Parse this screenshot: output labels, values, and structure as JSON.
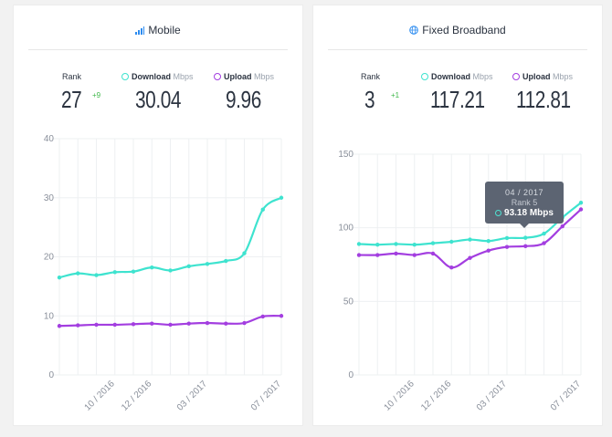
{
  "panels": [
    {
      "title": "Mobile",
      "icon": "signal-bars-icon",
      "rank_label": "Rank",
      "rank": "27",
      "rank_change": "+9",
      "download_label": "Download",
      "download_unit": "Mbps",
      "download": "30.04",
      "upload_label": "Upload",
      "upload_unit": "Mbps",
      "upload": "9.96"
    },
    {
      "title": "Fixed Broadband",
      "icon": "globe-icon",
      "rank_label": "Rank",
      "rank": "3",
      "rank_change": "+1",
      "download_label": "Download",
      "download_unit": "Mbps",
      "download": "117.21",
      "upload_label": "Upload",
      "upload_unit": "Mbps",
      "upload": "112.81"
    }
  ],
  "tooltip": {
    "date": "04 / 2017",
    "rank": "Rank 5",
    "value": "93.18 Mbps"
  },
  "colors": {
    "download": "#3ee3cf",
    "upload": "#a33ee0"
  },
  "chart_data": [
    {
      "type": "line",
      "title": "Mobile",
      "x": [
        "07/2016",
        "08/2016",
        "09/2016",
        "10/2016",
        "11/2016",
        "12/2016",
        "01/2017",
        "02/2017",
        "03/2017",
        "04/2017",
        "05/2017",
        "06/2017",
        "07/2017"
      ],
      "xticks": [
        "10 / 2016",
        "12 / 2016",
        "03 / 2017",
        "07 / 2017"
      ],
      "ylim": [
        0,
        40
      ],
      "yticks": [
        0,
        10,
        20,
        30,
        40
      ],
      "grid": true,
      "series": [
        {
          "key": "download",
          "values": [
            16.5,
            17.2,
            16.9,
            17.4,
            17.5,
            18.2,
            17.7,
            18.4,
            18.8,
            19.3,
            20.6,
            28.0,
            30.0
          ]
        },
        {
          "key": "upload",
          "values": [
            8.3,
            8.4,
            8.5,
            8.5,
            8.6,
            8.7,
            8.5,
            8.7,
            8.8,
            8.7,
            8.8,
            9.9,
            10.0
          ]
        }
      ]
    },
    {
      "type": "line",
      "title": "Fixed Broadband",
      "x": [
        "07/2016",
        "08/2016",
        "09/2016",
        "10/2016",
        "11/2016",
        "12/2016",
        "01/2017",
        "02/2017",
        "03/2017",
        "04/2017",
        "05/2017",
        "06/2017",
        "07/2017"
      ],
      "xticks": [
        "10 / 2016",
        "12 / 2016",
        "03 / 2017",
        "07 / 2017"
      ],
      "ylim": [
        0,
        150
      ],
      "yticks": [
        0,
        50,
        100,
        150
      ],
      "grid": true,
      "series": [
        {
          "key": "download",
          "values": [
            89,
            88.5,
            89,
            88.5,
            89.5,
            90.5,
            92,
            91,
            93,
            93.2,
            96,
            107,
            117
          ]
        },
        {
          "key": "upload",
          "values": [
            81.5,
            81.5,
            82.5,
            81.5,
            82.5,
            73,
            79.5,
            84.5,
            87,
            87.5,
            89.5,
            101,
            112.5
          ]
        }
      ]
    }
  ]
}
